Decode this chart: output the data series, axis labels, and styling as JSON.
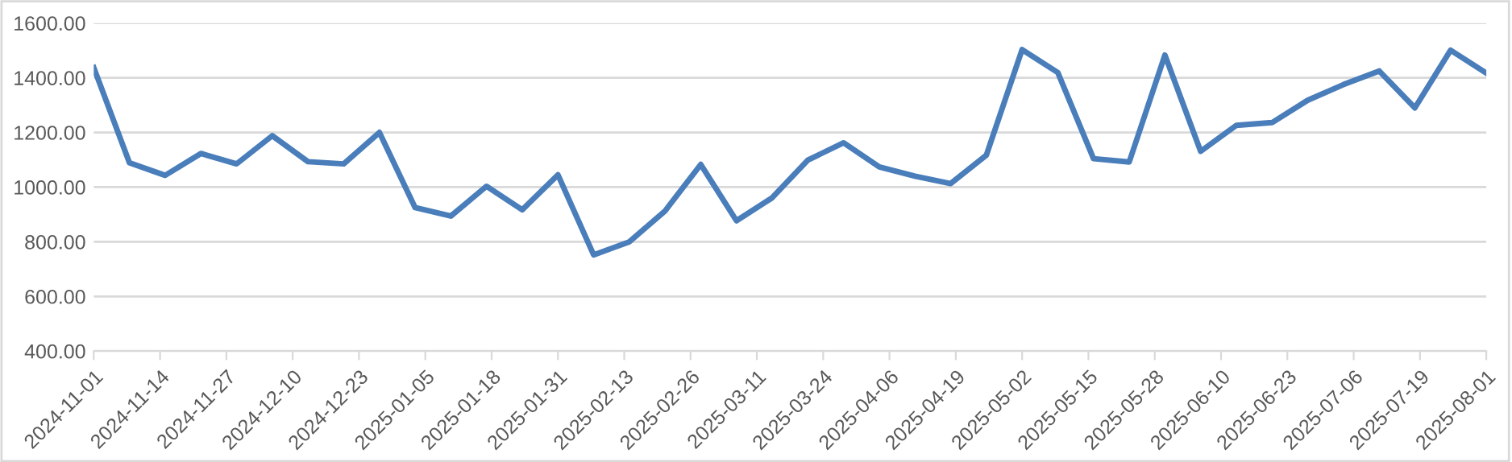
{
  "chart_data": {
    "type": "line",
    "x": [
      "2024-11-01",
      "2024-11-08",
      "2024-11-15",
      "2024-11-22",
      "2024-11-29",
      "2024-12-06",
      "2024-12-13",
      "2024-12-20",
      "2024-12-27",
      "2025-01-03",
      "2025-01-10",
      "2025-01-17",
      "2025-01-24",
      "2025-01-31",
      "2025-02-07",
      "2025-02-14",
      "2025-02-21",
      "2025-02-28",
      "2025-03-07",
      "2025-03-14",
      "2025-03-21",
      "2025-03-28",
      "2025-04-04",
      "2025-04-11",
      "2025-04-18",
      "2025-04-25",
      "2025-05-02",
      "2025-05-09",
      "2025-05-16",
      "2025-05-23",
      "2025-05-30",
      "2025-06-06",
      "2025-06-13",
      "2025-06-20",
      "2025-06-27",
      "2025-07-04",
      "2025-07-11",
      "2025-07-18",
      "2025-07-25",
      "2025-08-01"
    ],
    "series": [
      {
        "color": "#4a7ebb",
        "values": [
          1437,
          1089,
          1043,
          1123,
          1085,
          1188,
          1093,
          1085,
          1200,
          925,
          894,
          1003,
          917,
          1045,
          752,
          800,
          913,
          1083,
          877,
          961,
          1099,
          1162,
          1074,
          1040,
          1013,
          1117,
          1503,
          1419,
          1104,
          1092,
          1483,
          1131,
          1226,
          1236,
          1318,
          1375,
          1425,
          1290,
          1501,
          1417
        ]
      }
    ],
    "xlim": [
      "2024-11-01",
      "2025-08-01"
    ],
    "xticks": [
      "2024-11-01",
      "2024-11-14",
      "2024-11-27",
      "2024-12-10",
      "2024-12-23",
      "2025-01-05",
      "2025-01-18",
      "2025-01-31",
      "2025-02-13",
      "2025-02-26",
      "2025-03-11",
      "2025-03-24",
      "2025-04-06",
      "2025-04-19",
      "2025-05-02",
      "2025-05-15",
      "2025-05-28",
      "2025-06-10",
      "2025-06-23",
      "2025-07-06",
      "2025-07-19",
      "2025-08-01"
    ],
    "ylim": [
      400,
      1600
    ],
    "yticks": [
      {
        "value": 400,
        "label": "400.00"
      },
      {
        "value": 600,
        "label": "600.00"
      },
      {
        "value": 800,
        "label": "800.00"
      },
      {
        "value": 1000,
        "label": "1000.00"
      },
      {
        "value": 1200,
        "label": "1200.00"
      },
      {
        "value": 1400,
        "label": "1400.00"
      },
      {
        "value": 1600,
        "label": "1600.00"
      }
    ],
    "grid": "y",
    "marker": "none",
    "line_style": "solid"
  }
}
